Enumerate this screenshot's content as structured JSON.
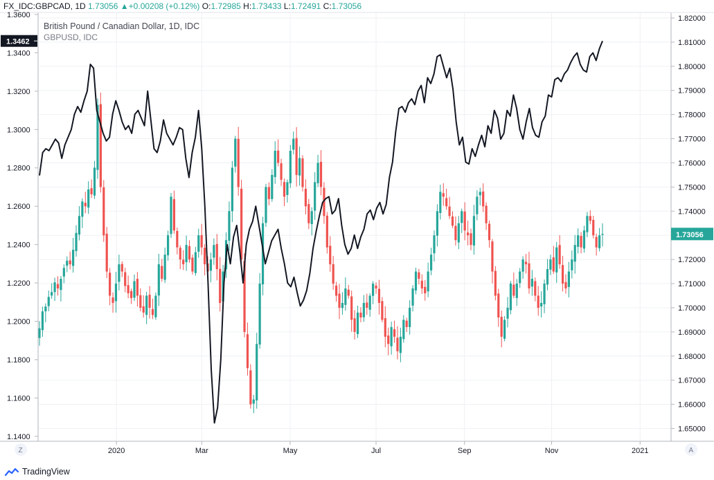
{
  "header": {
    "symbol": "FX_IDC:GBPCAD, 1D",
    "last": "1.73056",
    "change": "+0.00208 (+0.12%)",
    "open_k": "O:",
    "open_v": "1.72985",
    "high_k": "H:",
    "high_v": "1.73433",
    "low_k": "L:",
    "low_v": "1.72491",
    "close_k": "C:",
    "close_v": "1.73056"
  },
  "legend": {
    "title": "British Pound / Canadian Dollar, 1D, IDC",
    "overlay": "GBPUSD, IDC"
  },
  "footer": {
    "brand": "TradingView",
    "left_btn": "Z",
    "right_btn": "A"
  },
  "colors": {
    "up": "#26a69a",
    "down": "#ef5350",
    "overlay_line": "#131722",
    "grid": "#eef0f3",
    "axis_border": "#b2b5be"
  },
  "chart_data": {
    "type": "candlestick",
    "title": "British Pound / Canadian Dollar, 1D, IDC",
    "x_ticks": [
      "2020",
      "Mar",
      "May",
      "Jul",
      "Sep",
      "Nov",
      "2021"
    ],
    "right_axis": {
      "label": "GBPCAD",
      "ticks": [
        "1.82000",
        "1.81000",
        "1.80000",
        "1.79000",
        "1.78000",
        "1.77000",
        "1.76000",
        "1.75000",
        "1.74000",
        "1.73000",
        "1.72000",
        "1.71000",
        "1.70000",
        "1.69000",
        "1.68000",
        "1.67000",
        "1.66000",
        "1.65000"
      ],
      "range": [
        1.645,
        1.822
      ],
      "last_price": "1.73056"
    },
    "left_axis": {
      "label": "GBPUSD",
      "ticks": [
        "1.3600",
        "1.3400",
        "1.3200",
        "1.3000",
        "1.2800",
        "1.2600",
        "1.2400",
        "1.2200",
        "1.2000",
        "1.1800",
        "1.1600",
        "1.1400"
      ],
      "range": [
        1.1378,
        1.3607
      ],
      "last_price": "1.3462"
    },
    "series": [
      {
        "name": "GBPCAD",
        "kind": "candles",
        "axis": "right",
        "close_path": [
          1.6915,
          1.6985,
          1.7005,
          1.7045,
          1.7065,
          1.7105,
          1.708,
          1.712,
          1.7165,
          1.7195,
          1.718,
          1.724,
          1.731,
          1.738,
          1.744,
          1.742,
          1.749,
          1.747,
          1.758,
          1.784,
          1.75,
          1.73,
          1.715,
          1.705,
          1.702,
          1.71,
          1.718,
          1.715,
          1.709,
          1.706,
          1.704,
          1.711,
          1.705,
          1.7,
          1.698,
          1.705,
          1.7,
          1.697,
          1.705,
          1.718,
          1.712,
          1.722,
          1.73,
          1.746,
          1.732,
          1.725,
          1.72,
          1.718,
          1.726,
          1.72,
          1.715,
          1.723,
          1.73,
          1.725,
          1.718,
          1.715,
          1.72,
          1.726,
          1.716,
          1.702,
          1.715,
          1.728,
          1.74,
          1.758,
          1.77,
          1.75,
          1.72,
          1.69,
          1.675,
          1.66,
          1.662,
          1.685,
          1.71,
          1.735,
          1.75,
          1.745,
          1.755,
          1.765,
          1.76,
          1.753,
          1.746,
          1.752,
          1.765,
          1.77,
          1.755,
          1.762,
          1.75,
          1.742,
          1.735,
          1.74,
          1.752,
          1.76,
          1.75,
          1.738,
          1.725,
          1.718,
          1.71,
          1.705,
          1.7,
          1.702,
          1.708,
          1.705,
          1.695,
          1.69,
          1.698,
          1.696,
          1.702,
          1.7,
          1.705,
          1.71,
          1.708,
          1.702,
          1.695,
          1.688,
          1.685,
          1.692,
          1.688,
          1.682,
          1.688,
          1.695,
          1.692,
          1.7,
          1.708,
          1.715,
          1.712,
          1.708,
          1.706,
          1.715,
          1.722,
          1.73,
          1.74,
          1.748,
          1.746,
          1.742,
          1.738,
          1.734,
          1.728,
          1.735,
          1.74,
          1.732,
          1.73,
          1.726,
          1.738,
          1.746,
          1.748,
          1.742,
          1.735,
          1.728,
          1.715,
          1.705,
          1.696,
          1.688,
          1.695,
          1.7,
          1.71,
          1.705,
          1.71,
          1.715,
          1.72,
          1.718,
          1.708,
          1.712,
          1.705,
          1.7,
          1.702,
          1.71,
          1.716,
          1.72,
          1.715,
          1.725,
          1.718,
          1.71,
          1.708,
          1.715,
          1.72,
          1.726,
          1.73,
          1.725,
          1.732,
          1.738,
          1.736,
          1.73,
          1.725,
          1.73,
          1.7306
        ],
        "last": 1.73056
      },
      {
        "name": "GBPUSD",
        "kind": "line",
        "axis": "left",
        "values": [
          1.276,
          1.288,
          1.29,
          1.289,
          1.292,
          1.295,
          1.293,
          1.285,
          1.292,
          1.296,
          1.3,
          1.308,
          1.312,
          1.309,
          1.315,
          1.32,
          1.334,
          1.332,
          1.31,
          1.304,
          1.298,
          1.294,
          1.296,
          1.308,
          1.315,
          1.31,
          1.304,
          1.3,
          1.302,
          1.298,
          1.308,
          1.31,
          1.306,
          1.302,
          1.32,
          1.305,
          1.29,
          1.288,
          1.294,
          1.305,
          1.298,
          1.295,
          1.292,
          1.296,
          1.301,
          1.3,
          1.285,
          1.275,
          1.288,
          1.296,
          1.31,
          1.29,
          1.26,
          1.22,
          1.175,
          1.147,
          1.155,
          1.18,
          1.22,
          1.24,
          1.23,
          1.244,
          1.25,
          1.236,
          1.22,
          1.24,
          1.248,
          1.252,
          1.26,
          1.25,
          1.24,
          1.23,
          1.236,
          1.242,
          1.245,
          1.248,
          1.238,
          1.23,
          1.22,
          1.218,
          1.223,
          1.215,
          1.208,
          1.211,
          1.216,
          1.225,
          1.238,
          1.247,
          1.255,
          1.262,
          1.264,
          1.265,
          1.256,
          1.258,
          1.264,
          1.25,
          1.24,
          1.235,
          1.238,
          1.245,
          1.238,
          1.244,
          1.248,
          1.256,
          1.258,
          1.253,
          1.259,
          1.262,
          1.256,
          1.261,
          1.275,
          1.283,
          1.299,
          1.311,
          1.312,
          1.309,
          1.314,
          1.316,
          1.313,
          1.32,
          1.323,
          1.314,
          1.327,
          1.324,
          1.329,
          1.338,
          1.339,
          1.333,
          1.327,
          1.332,
          1.321,
          1.304,
          1.292,
          1.296,
          1.283,
          1.282,
          1.29,
          1.286,
          1.292,
          1.297,
          1.291,
          1.302,
          1.298,
          1.31,
          1.306,
          1.295,
          1.298,
          1.31,
          1.307,
          1.318,
          1.311,
          1.3,
          1.295,
          1.304,
          1.311,
          1.301,
          1.297,
          1.296,
          1.304,
          1.307,
          1.318,
          1.317,
          1.326,
          1.327,
          1.325,
          1.329,
          1.331,
          1.335,
          1.338,
          1.34,
          1.334,
          1.331,
          1.33,
          1.338,
          1.34,
          1.336,
          1.342,
          1.3462
        ],
        "last": 1.3462
      }
    ],
    "grid": true
  }
}
